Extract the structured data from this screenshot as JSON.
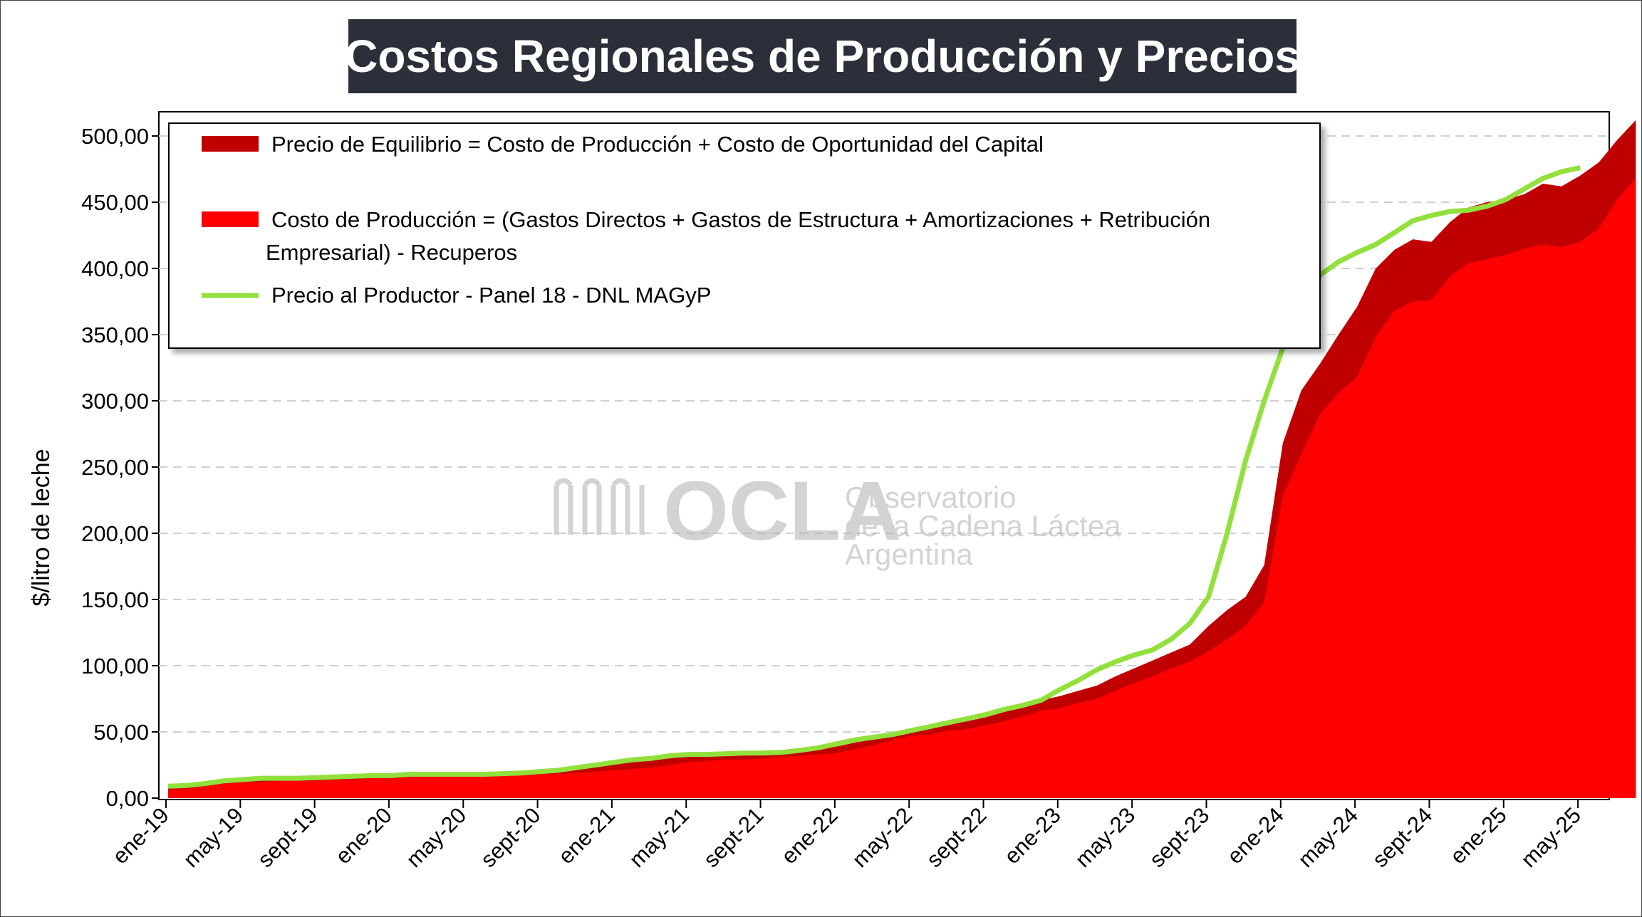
{
  "title": "Costos Regionales de Producción y Precios",
  "watermark": {
    "brand": "OCLA",
    "line1": "Observatorio",
    "line2": "de la Cadena Láctea",
    "line3": "Argentina"
  },
  "colors": {
    "equilibrio": "#c00000",
    "costo": "#ff0000",
    "precio": "#92e03c",
    "title_bg": "#2b2f3a"
  },
  "chart_data": {
    "type": "area",
    "title": "Costos Regionales de Producción y Precios",
    "xlabel": "",
    "ylabel": "$/litro de leche",
    "ylim": [
      0,
      500
    ],
    "yticks": [
      "0,00",
      "50,00",
      "100,00",
      "150,00",
      "200,00",
      "250,00",
      "300,00",
      "350,00",
      "400,00",
      "450,00",
      "500,00"
    ],
    "xtick_labels": [
      "ene-19",
      "may-19",
      "sept-19",
      "ene-20",
      "may-20",
      "sept-20",
      "ene-21",
      "may-21",
      "sept-21",
      "ene-22",
      "may-22",
      "sept-22",
      "ene-23",
      "may-23",
      "sept-23",
      "ene-24",
      "may-24",
      "sept-24",
      "ene-25",
      "may-25"
    ],
    "grid": "horizontal-dashed",
    "legend_position": "top-left",
    "x_start": "ene-19",
    "x_end": "jul-25",
    "series": [
      {
        "name": "Precio de Equilibrio = Costo de Producción + Costo de Oportunidad del Capital",
        "kind": "area",
        "values": [
          8,
          9,
          11,
          13,
          14,
          14,
          15,
          15,
          15,
          16,
          16,
          17,
          17,
          18,
          18,
          18,
          18,
          19,
          19,
          20,
          21,
          21,
          24,
          25,
          26,
          27,
          29,
          30,
          32,
          33,
          34,
          34,
          35,
          36,
          37,
          38,
          39,
          42,
          45,
          49,
          52,
          53,
          57,
          58,
          61,
          65,
          69,
          74,
          77,
          81,
          85,
          92,
          98,
          104,
          110,
          116,
          130,
          142,
          152,
          176,
          268,
          308,
          328,
          350,
          371,
          400,
          414,
          422,
          420,
          435,
          446,
          450,
          452,
          456,
          464,
          462,
          470,
          480,
          497,
          512
        ]
      },
      {
        "name": "Costo de Producción = (Gastos Directos + Gastos de Estructura + Amortizaciones + Retribución Empresarial) - Recuperos",
        "kind": "area",
        "values": [
          6,
          7,
          9,
          11,
          12,
          12,
          13,
          13,
          13,
          14,
          14,
          15,
          15,
          16,
          16,
          16,
          16,
          17,
          17,
          17,
          18,
          18,
          19,
          20,
          21,
          22,
          23,
          25,
          27,
          28,
          29,
          29,
          30,
          31,
          32,
          33,
          34,
          37,
          40,
          44,
          47,
          48,
          51,
          52,
          55,
          58,
          62,
          66,
          68,
          72,
          75,
          81,
          87,
          92,
          98,
          103,
          111,
          120,
          130,
          148,
          228,
          260,
          290,
          306,
          318,
          348,
          368,
          375,
          376,
          394,
          404,
          407,
          410,
          415,
          418,
          416,
          420,
          430,
          452,
          468
        ]
      },
      {
        "name": "Precio al Productor - Panel 18 - DNL MAGyP",
        "kind": "line",
        "values": [
          9,
          9.5,
          11,
          13,
          14,
          15,
          15,
          15,
          15.5,
          16,
          16.5,
          17,
          17,
          18,
          18,
          18,
          18,
          18,
          18.5,
          19,
          20,
          21,
          23,
          25,
          27,
          29,
          30,
          32,
          33,
          33,
          33.5,
          34,
          34,
          34.5,
          36,
          38,
          41,
          44,
          46,
          48,
          51,
          54,
          57,
          60,
          63,
          67,
          70,
          74,
          82,
          89,
          97,
          103,
          108,
          112,
          120,
          132,
          152,
          200,
          255,
          300,
          340,
          360,
          395,
          405,
          412,
          418,
          427,
          436,
          440,
          443,
          444,
          447,
          452,
          460,
          468,
          473,
          476
        ]
      }
    ],
    "legend": [
      {
        "label": "Precio de Equilibrio = Costo de Producción + Costo de Oportunidad del Capital"
      },
      {
        "label": "Costo de Producción = (Gastos Directos + Gastos de Estructura + Amortizaciones + Retribución",
        "label2": "Empresarial) - Recuperos"
      },
      {
        "label": "Precio al Productor - Panel 18 - DNL MAGyP"
      }
    ]
  }
}
